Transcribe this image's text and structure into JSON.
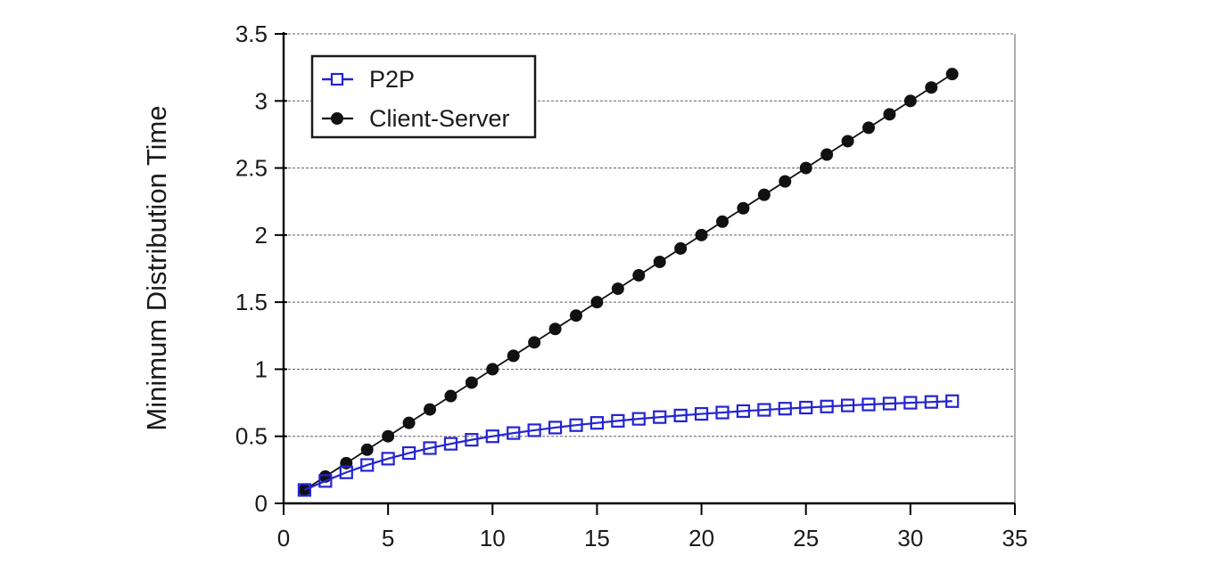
{
  "chart_data": {
    "type": "line",
    "title": "",
    "xlabel": "",
    "ylabel": "Minimum Distribution Time",
    "xlim": [
      0,
      35
    ],
    "ylim": [
      0,
      3.5
    ],
    "x_tick_values": [
      0,
      5,
      10,
      15,
      20,
      25,
      30,
      35
    ],
    "x_ticks": [
      "0",
      "5",
      "10",
      "15",
      "20",
      "25",
      "30",
      "35"
    ],
    "y_tick_values": [
      0,
      0.5,
      1,
      1.5,
      2,
      2.5,
      3,
      3.5
    ],
    "y_ticks": [
      "0",
      "0.5",
      "1",
      "1.5",
      "2",
      "2.5",
      "3",
      "3.5"
    ],
    "grid": "horizontal-dashed-every-0.5",
    "legend_position": "top-left-inside",
    "x": [
      1,
      2,
      3,
      4,
      5,
      6,
      7,
      8,
      9,
      10,
      11,
      12,
      13,
      14,
      15,
      16,
      17,
      18,
      19,
      20,
      21,
      22,
      23,
      24,
      25,
      26,
      27,
      28,
      29,
      30,
      31,
      32
    ],
    "series": [
      {
        "name": "P2P",
        "color": "#2424d2",
        "marker": "open-square",
        "values": [
          0.1,
          0.167,
          0.231,
          0.286,
          0.333,
          0.375,
          0.412,
          0.444,
          0.474,
          0.5,
          0.524,
          0.545,
          0.565,
          0.583,
          0.6,
          0.615,
          0.63,
          0.643,
          0.655,
          0.667,
          0.677,
          0.688,
          0.697,
          0.706,
          0.714,
          0.722,
          0.73,
          0.737,
          0.744,
          0.75,
          0.756,
          0.762
        ]
      },
      {
        "name": "Client-Server",
        "color": "#111111",
        "marker": "filled-circle",
        "values": [
          0.1,
          0.2,
          0.3,
          0.4,
          0.5,
          0.6,
          0.7,
          0.8,
          0.9,
          1.0,
          1.1,
          1.2,
          1.3,
          1.4,
          1.5,
          1.6,
          1.7,
          1.8,
          1.9,
          2.0,
          2.1,
          2.2,
          2.3,
          2.4,
          2.5,
          2.6,
          2.7,
          2.8,
          2.9,
          3.0,
          3.1,
          3.2
        ]
      }
    ],
    "colors": {
      "axis": "#000000",
      "gridline": "#606060",
      "plot_right_border": "#909090",
      "background": "#ffffff"
    }
  }
}
